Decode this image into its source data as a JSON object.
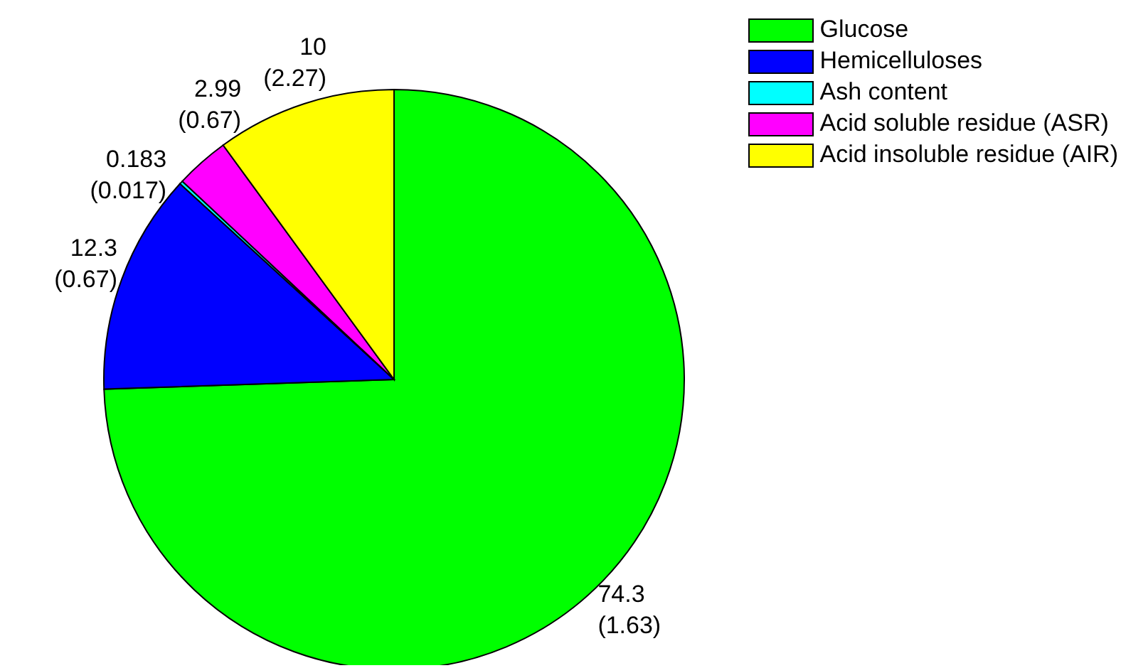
{
  "chart_data": {
    "type": "pie",
    "categories": [
      "Glucose",
      "Hemicelluloses",
      "Ash content",
      "Acid soluble residue (ASR)",
      "Acid insoluble residue (AIR)"
    ],
    "values": [
      74.3,
      12.3,
      0.183,
      2.99,
      10
    ],
    "colors": [
      "#00ff00",
      "#0000ff",
      "#00ffff",
      "#ff00ff",
      "#ffff00"
    ],
    "value_labels": [
      "74.3\n(1.63)",
      "12.3\n(0.67)",
      "0.183\n(0.017)",
      "2.99\n(0.67)",
      "10\n(2.27)"
    ],
    "legend": "top right"
  }
}
